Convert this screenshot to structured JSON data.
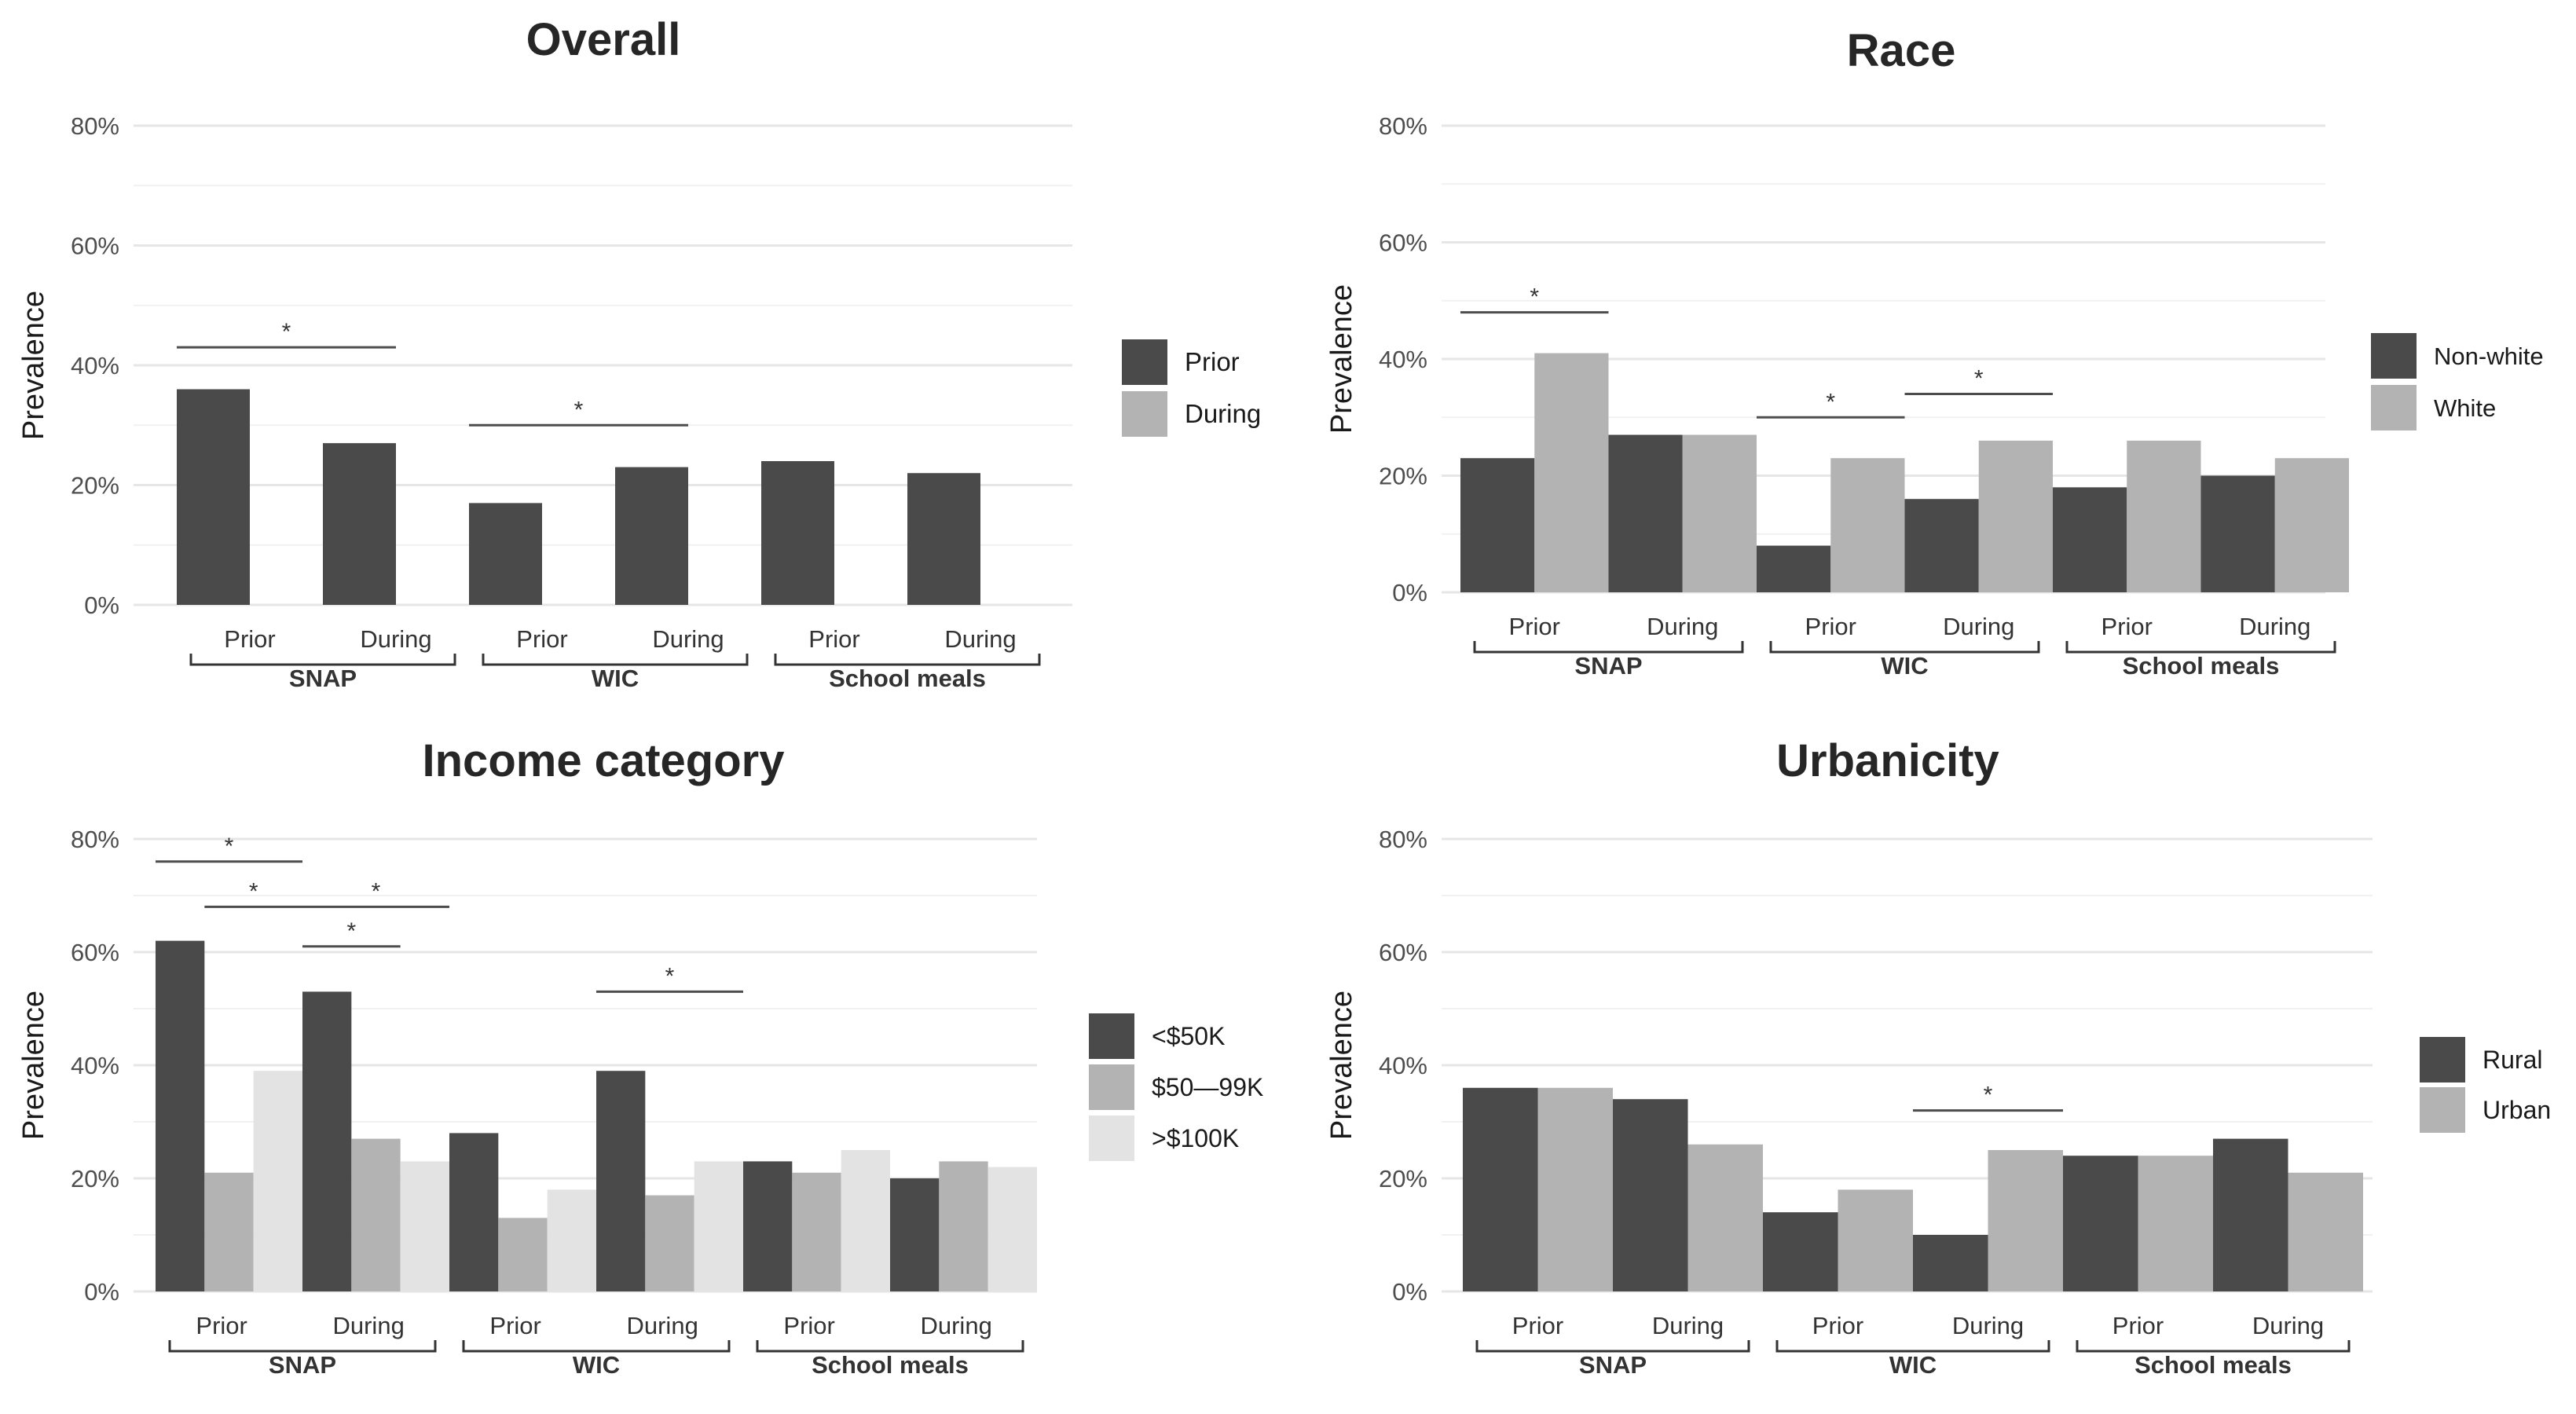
{
  "figure": {
    "y_axis_label": "Prevalence",
    "groups": [
      "SNAP",
      "WIC",
      "School meals"
    ],
    "subgroups": [
      "Prior",
      "During"
    ],
    "y_ticks": [
      "0%",
      "20%",
      "40%",
      "60%",
      "80%"
    ]
  },
  "chart_data": [
    {
      "type": "bar",
      "title": "Overall",
      "ylabel": "Prevalence",
      "ylim": [
        0,
        80
      ],
      "categories": [
        "SNAP",
        "WIC",
        "School meals"
      ],
      "subcategories": [
        "Prior",
        "During"
      ],
      "legend": [
        "Prior",
        "During"
      ],
      "colors": [
        "#4a4a4a",
        "#b3b3b3"
      ],
      "bars": [
        {
          "group": 0,
          "sub": 0,
          "values": [
            36
          ]
        },
        {
          "group": 0,
          "sub": 1,
          "values": [
            27
          ]
        },
        {
          "group": 1,
          "sub": 0,
          "values": [
            17
          ]
        },
        {
          "group": 1,
          "sub": 1,
          "values": [
            23
          ]
        },
        {
          "group": 2,
          "sub": 0,
          "values": [
            24
          ]
        },
        {
          "group": 2,
          "sub": 1,
          "values": [
            22
          ]
        }
      ],
      "significance": [
        {
          "from": [
            0,
            0,
            0
          ],
          "to": [
            0,
            1,
            0
          ],
          "y": 43,
          "label": "*"
        },
        {
          "from": [
            1,
            0,
            0
          ],
          "to": [
            1,
            1,
            0
          ],
          "y": 30,
          "label": "*"
        }
      ]
    },
    {
      "type": "bar",
      "title": "Race",
      "ylabel": "Prevalence",
      "ylim": [
        0,
        80
      ],
      "categories": [
        "SNAP",
        "WIC",
        "School meals"
      ],
      "subcategories": [
        "Prior",
        "During"
      ],
      "legend": [
        "Non-white",
        "White"
      ],
      "colors": [
        "#4a4a4a",
        "#b3b3b3"
      ],
      "bars": [
        {
          "group": 0,
          "sub": 0,
          "values": [
            23,
            41
          ]
        },
        {
          "group": 0,
          "sub": 1,
          "values": [
            27,
            27
          ]
        },
        {
          "group": 1,
          "sub": 0,
          "values": [
            8,
            23
          ]
        },
        {
          "group": 1,
          "sub": 1,
          "values": [
            16,
            26
          ]
        },
        {
          "group": 2,
          "sub": 0,
          "values": [
            18,
            26
          ]
        },
        {
          "group": 2,
          "sub": 1,
          "values": [
            20,
            23
          ]
        }
      ],
      "significance": [
        {
          "from": [
            0,
            0,
            0
          ],
          "to": [
            0,
            0,
            1
          ],
          "y": 48,
          "label": "*"
        },
        {
          "from": [
            1,
            0,
            0
          ],
          "to": [
            1,
            0,
            1
          ],
          "y": 30,
          "label": "*"
        },
        {
          "from": [
            1,
            1,
            0
          ],
          "to": [
            1,
            1,
            1
          ],
          "y": 34,
          "label": "*"
        }
      ]
    },
    {
      "type": "bar",
      "title": "Income category",
      "ylabel": "Prevalence",
      "ylim": [
        0,
        80
      ],
      "categories": [
        "SNAP",
        "WIC",
        "School meals"
      ],
      "subcategories": [
        "Prior",
        "During"
      ],
      "legend": [
        "<$50K",
        "$50—99K",
        ">$100K"
      ],
      "colors": [
        "#4a4a4a",
        "#b3b3b3",
        "#e3e3e3"
      ],
      "bars": [
        {
          "group": 0,
          "sub": 0,
          "values": [
            62,
            21,
            39
          ]
        },
        {
          "group": 0,
          "sub": 1,
          "values": [
            53,
            27,
            23
          ]
        },
        {
          "group": 1,
          "sub": 0,
          "values": [
            28,
            13,
            18
          ]
        },
        {
          "group": 1,
          "sub": 1,
          "values": [
            39,
            17,
            23
          ]
        },
        {
          "group": 2,
          "sub": 0,
          "values": [
            23,
            21,
            25
          ]
        },
        {
          "group": 2,
          "sub": 1,
          "values": [
            20,
            23,
            22
          ]
        }
      ],
      "significance": [
        {
          "from": [
            0,
            0,
            0
          ],
          "to": [
            0,
            0,
            2
          ],
          "y": 76,
          "label": "*"
        },
        {
          "from": [
            0,
            0,
            1
          ],
          "to": [
            0,
            0,
            2
          ],
          "y": 68,
          "label": "*"
        },
        {
          "from": [
            0,
            1,
            0
          ],
          "to": [
            0,
            1,
            1
          ],
          "y": 61,
          "label": "*"
        },
        {
          "from": [
            0,
            1,
            0
          ],
          "to": [
            0,
            1,
            2
          ],
          "y": 68,
          "label": "*"
        },
        {
          "from": [
            1,
            1,
            0
          ],
          "to": [
            1,
            1,
            2
          ],
          "y": 53,
          "label": "*"
        }
      ]
    },
    {
      "type": "bar",
      "title": "Urbanicity",
      "ylabel": "Prevalence",
      "ylim": [
        0,
        80
      ],
      "categories": [
        "SNAP",
        "WIC",
        "School meals"
      ],
      "subcategories": [
        "Prior",
        "During"
      ],
      "legend": [
        "Rural",
        "Urban"
      ],
      "colors": [
        "#4a4a4a",
        "#b3b3b3"
      ],
      "bars": [
        {
          "group": 0,
          "sub": 0,
          "values": [
            36,
            36
          ]
        },
        {
          "group": 0,
          "sub": 1,
          "values": [
            34,
            26
          ]
        },
        {
          "group": 1,
          "sub": 0,
          "values": [
            14,
            18
          ]
        },
        {
          "group": 1,
          "sub": 1,
          "values": [
            10,
            25
          ]
        },
        {
          "group": 2,
          "sub": 0,
          "values": [
            24,
            24
          ]
        },
        {
          "group": 2,
          "sub": 1,
          "values": [
            27,
            21
          ]
        }
      ],
      "significance": [
        {
          "from": [
            1,
            1,
            0
          ],
          "to": [
            1,
            1,
            1
          ],
          "y": 32,
          "label": "*"
        }
      ]
    }
  ]
}
